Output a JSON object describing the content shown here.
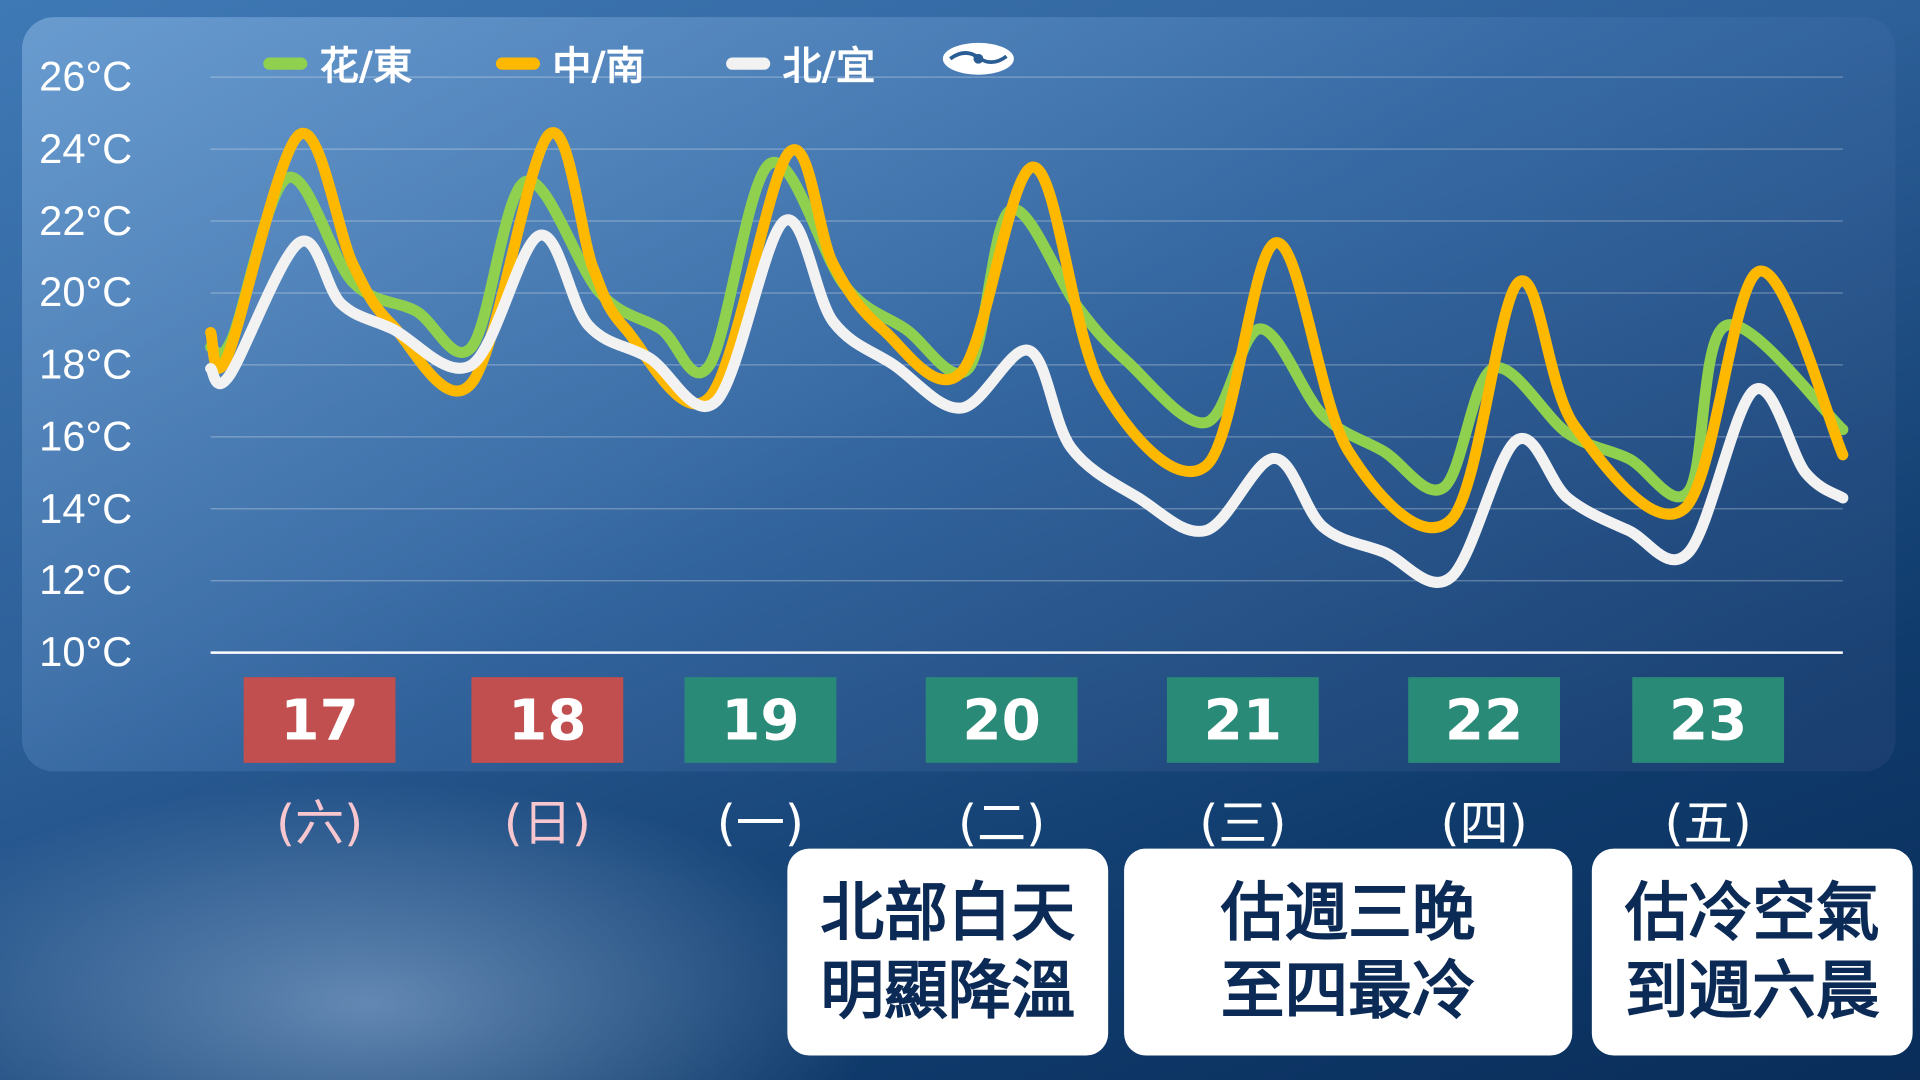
{
  "chart_data": {
    "type": "line",
    "ylim": [
      10,
      26
    ],
    "xlim": [
      17,
      24
    ],
    "grid": true,
    "legend_position": "top-left",
    "y_ticks": [
      "10°C",
      "12°C",
      "14°C",
      "16°C",
      "18°C",
      "20°C",
      "22°C",
      "24°C",
      "26°C"
    ],
    "series": [
      {
        "name": "花/東",
        "color": "#8fd14f",
        "x": [
          17.0,
          17.09,
          17.33,
          17.61,
          17.88,
          18.12,
          18.35,
          18.67,
          18.93,
          19.14,
          19.4,
          19.72,
          19.98,
          20.25,
          20.43,
          20.72,
          20.93,
          21.27,
          21.5,
          21.77,
          22.03,
          22.29,
          22.5,
          22.82,
          23.08,
          23.34,
          23.5,
          24.0
        ],
        "y": [
          18.5,
          18.7,
          23.2,
          20.3,
          19.5,
          18.5,
          23.1,
          20.0,
          19.0,
          18.0,
          23.6,
          20.2,
          19.0,
          17.9,
          22.3,
          19.6,
          18.1,
          16.4,
          19.0,
          16.6,
          15.6,
          14.6,
          17.9,
          16.1,
          15.4,
          14.5,
          19.1,
          16.2
        ]
      },
      {
        "name": "中/南",
        "color": "#ffb800",
        "x": [
          17.0,
          17.07,
          17.38,
          17.61,
          17.78,
          18.12,
          18.45,
          18.64,
          18.78,
          19.14,
          19.48,
          19.67,
          19.88,
          20.22,
          20.53,
          20.82,
          21.27,
          21.57,
          21.88,
          22.32,
          22.61,
          22.85,
          23.32,
          23.64,
          24.0
        ],
        "y": [
          18.9,
          18.2,
          24.4,
          20.8,
          19.1,
          17.5,
          24.4,
          20.7,
          19.0,
          17.1,
          23.9,
          20.8,
          19.0,
          17.8,
          23.5,
          17.4,
          15.2,
          21.4,
          15.6,
          13.7,
          20.3,
          16.3,
          14.0,
          20.6,
          15.5
        ]
      },
      {
        "name": "北/宜",
        "color": "#f2f2f2",
        "x": [
          17.0,
          17.08,
          17.38,
          17.56,
          17.78,
          18.12,
          18.41,
          18.62,
          18.88,
          19.17,
          19.46,
          19.67,
          19.93,
          20.22,
          20.51,
          20.69,
          20.98,
          21.27,
          21.56,
          21.77,
          22.03,
          22.32,
          22.6,
          22.82,
          23.08,
          23.34,
          23.62,
          23.84,
          24.0
        ],
        "y": [
          17.9,
          17.7,
          21.4,
          19.7,
          19.0,
          18.0,
          21.6,
          19.1,
          18.2,
          17.0,
          22.0,
          19.2,
          18.0,
          16.8,
          18.4,
          15.7,
          14.3,
          13.4,
          15.4,
          13.5,
          12.8,
          12.1,
          15.9,
          14.3,
          13.4,
          12.8,
          17.3,
          15.0,
          14.3
        ]
      }
    ],
    "days": [
      {
        "date": "17",
        "weekday": "(六)",
        "color": "#c24f4f",
        "weekday_color": "#f7c6cf"
      },
      {
        "date": "18",
        "weekday": "(日)",
        "color": "#c24f4f",
        "weekday_color": "#f7c6cf"
      },
      {
        "date": "19",
        "weekday": "(一)",
        "color": "#2a8a78",
        "weekday_color": "#ffffff"
      },
      {
        "date": "20",
        "weekday": "(二)",
        "color": "#2a8a78",
        "weekday_color": "#ffffff"
      },
      {
        "date": "21",
        "weekday": "(三)",
        "color": "#2a8a78",
        "weekday_color": "#ffffff"
      },
      {
        "date": "22",
        "weekday": "(四)",
        "color": "#2a8a78",
        "weekday_color": "#ffffff"
      },
      {
        "date": "23",
        "weekday": "(五)",
        "color": "#2a8a78",
        "weekday_color": "#ffffff"
      }
    ]
  },
  "logo": "cwa-logo-icon",
  "cards": [
    {
      "line1": "北部白天",
      "line2": "明顯降溫"
    },
    {
      "line1": "估週三晚",
      "line2": "至四最冷"
    },
    {
      "line1": "估冷空氣",
      "line2": "到週六晨"
    }
  ]
}
